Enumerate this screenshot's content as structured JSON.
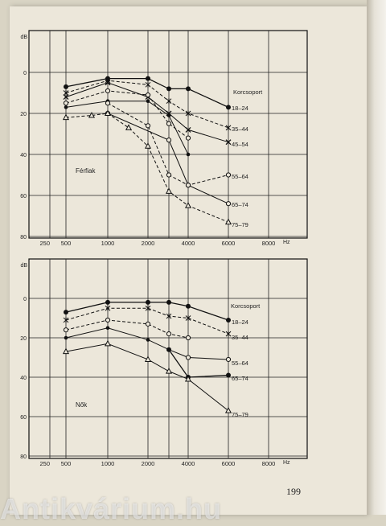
{
  "page_number": "199",
  "watermark": "Antikvárium.hu",
  "chart_data": [
    {
      "type": "line",
      "title": "",
      "panel_label": "Férfiak",
      "legend_title": "Korcsoport",
      "ylabel": "dB",
      "xlabel": "Hz",
      "x_ticks": [
        "250",
        "500",
        "1000",
        "2000",
        "4000",
        "6000",
        "8000"
      ],
      "x": [
        500,
        1000,
        2000,
        3000,
        4000,
        6000
      ],
      "y_ticks": [
        "0",
        "20",
        "40",
        "60",
        "80"
      ],
      "ylim": [
        -20,
        80
      ],
      "y_inverted": true,
      "series": [
        {
          "name": "18–24",
          "marker": "filled-circle",
          "dashed": false,
          "values": [
            7,
            3,
            3,
            8,
            8,
            17
          ]
        },
        {
          "name": "35–44",
          "marker": "asterisk",
          "dashed": true,
          "values": [
            10,
            4,
            6,
            14,
            20,
            27
          ]
        },
        {
          "name": "45–54",
          "marker": "cross",
          "dashed": false,
          "values": [
            12,
            5,
            12,
            20,
            28,
            34
          ]
        },
        {
          "name": "",
          "marker": "open-circle",
          "dashed": true,
          "values": [
            15,
            9,
            11,
            25,
            32,
            null
          ]
        },
        {
          "name": "",
          "marker": "filled-circle-small",
          "dashed": false,
          "values": [
            17,
            14,
            14,
            21,
            40,
            null
          ]
        },
        {
          "name": "55–64",
          "marker": "open-circle",
          "dashed": true,
          "values": [
            null,
            15,
            26,
            50,
            55,
            50
          ]
        },
        {
          "name": "65–74",
          "marker": "open-circle",
          "dashed": false,
          "values": [
            null,
            20,
            null,
            33,
            55,
            64
          ]
        },
        {
          "name": "75–79",
          "marker": "triangle",
          "dashed": true,
          "values": [
            22,
            20,
            36,
            58,
            65,
            73
          ]
        }
      ],
      "extra_points": [
        {
          "series": "75–79",
          "x": 750,
          "y": 21
        },
        {
          "series": "75–79",
          "x": 1500,
          "y": 27
        }
      ]
    },
    {
      "type": "line",
      "title": "",
      "panel_label": "Nők",
      "legend_title": "Korcsoport",
      "ylabel": "dB",
      "xlabel": "Hz",
      "x_ticks": [
        "250",
        "500",
        "1000",
        "2000",
        "4000",
        "6000",
        "8000"
      ],
      "x": [
        500,
        1000,
        2000,
        3000,
        4000,
        6000
      ],
      "y_ticks": [
        "0",
        "20",
        "40",
        "60",
        "80"
      ],
      "ylim": [
        -20,
        80
      ],
      "y_inverted": true,
      "series": [
        {
          "name": "18–24",
          "marker": "filled-circle",
          "dashed": false,
          "values": [
            7,
            2,
            2,
            2,
            4,
            11
          ]
        },
        {
          "name": "35–44",
          "marker": "asterisk",
          "dashed": true,
          "values": [
            11,
            5,
            5,
            9,
            10,
            18
          ]
        },
        {
          "name": "",
          "marker": "open-circle",
          "dashed": true,
          "values": [
            16,
            11,
            13,
            18,
            20,
            null
          ]
        },
        {
          "name": "",
          "marker": "filled-circle-small",
          "dashed": false,
          "values": [
            20,
            15,
            21,
            26,
            30,
            null
          ]
        },
        {
          "name": "55–64",
          "marker": "open-circle",
          "dashed": false,
          "values": [
            null,
            null,
            null,
            null,
            30,
            31
          ]
        },
        {
          "name": "65–74",
          "marker": "filled-circle",
          "dashed": false,
          "values": [
            null,
            null,
            null,
            26,
            40,
            39
          ]
        },
        {
          "name": "75–79",
          "marker": "triangle",
          "dashed": false,
          "values": [
            27,
            23,
            31,
            37,
            41,
            57
          ]
        }
      ]
    }
  ]
}
